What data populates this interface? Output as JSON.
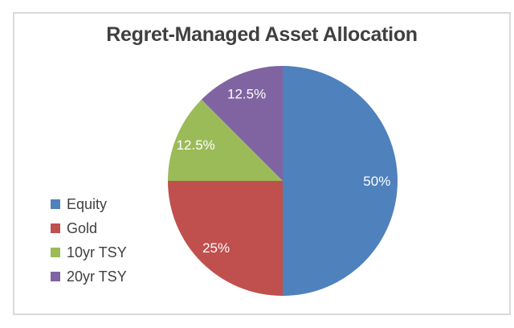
{
  "window": {
    "background": "#FFFFFF"
  },
  "frame": {
    "border_color": "#D9D9D9",
    "fill": "#FFFFFF"
  },
  "chart_data": {
    "type": "pie",
    "title": "Regret-Managed Asset Allocation",
    "categories": [
      "Equity",
      "Gold",
      "10yr TSY",
      "20yr TSY"
    ],
    "values": [
      50,
      25,
      12.5,
      12.5
    ],
    "data_labels": [
      "50%",
      "25%",
      "12.5%",
      "12.5%"
    ],
    "colors": [
      "#4F81BD",
      "#C0504D",
      "#9BBB59",
      "#8064A2"
    ],
    "start_angle_deg": 0,
    "direction": "clockwise",
    "legend_position": "middle-left",
    "legend_entries": [
      "Equity",
      "Gold",
      "10yr TSY",
      "20yr TSY"
    ],
    "data_label_color": "#FFFFFF",
    "title_color": "#404040",
    "legend_text_color": "#404040"
  }
}
